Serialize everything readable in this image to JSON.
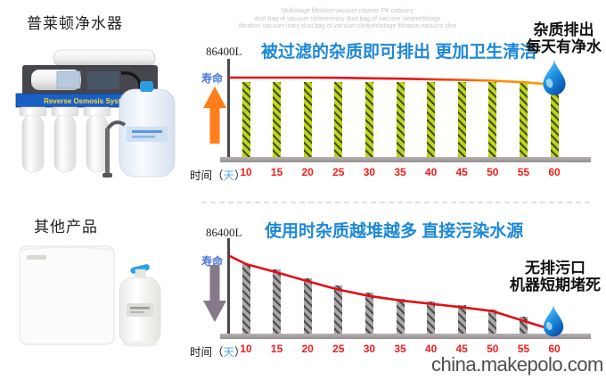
{
  "page": {
    "left_panel": {
      "product1_label": "普莱顿净水器",
      "product1_band_text": "Reverse Osmosis System",
      "product2_label": "其他产品"
    },
    "watermark": {
      "line1": "Multistage filtration vacuum cleaner PK ordinary",
      "line2": "dust bag of vacuum cleanerinary dust bag of vacuum cleanerlistage",
      "line3": "filtration vacuum inary dust bag of vacuum cleanerlistage filtration vacuum clea"
    },
    "footer_watermark": "china.makepolo.com"
  },
  "colors": {
    "title_blue": "#1e88d8",
    "tick_red": "#f21c1c",
    "day_blue": "#5aa6f0",
    "lifespan_blue": "#4a78d8",
    "bar_green": "#bcd421",
    "bar_green_stripe": "#44520a",
    "bar_gray": "#a8a8a8",
    "bar_gray_stripe": "#4c4c4c",
    "line_red": "#e30f16",
    "line_orange": "#ff9100",
    "arrow_orange": "#ff7d1a",
    "arrow_gray_purple": "#85798a",
    "axis_gray": "#4a4a48",
    "baseline_gray": "#a59f9f",
    "drop_blue_dark": "#0b57b0",
    "drop_blue_light": "#8edcf8"
  },
  "chart_data": [
    {
      "type": "bar",
      "title": "被过滤的杂质即可排出 更加卫生清洁",
      "y_axis_top_label": "86400L",
      "y_axis_label": "寿命",
      "x_prefix_time": "时间",
      "x_prefix_open": "（",
      "x_prefix_day": "天",
      "x_prefix_close": "）",
      "categories": [
        "10",
        "15",
        "20",
        "25",
        "30",
        "35",
        "40",
        "45",
        "50",
        "55",
        "60"
      ],
      "bar_values": [
        78,
        78,
        78,
        78,
        78,
        78,
        78,
        78,
        78,
        78,
        78
      ],
      "line_series": {
        "name": "寿命",
        "start": 82.7,
        "values": [
          82.7,
          82.7,
          82.7,
          82.5,
          82,
          81.6,
          81,
          80.4,
          79.5,
          78,
          75.5
        ]
      },
      "ylim": [
        0,
        100
      ],
      "annotation_line1": "杂质排出",
      "annotation_line2": "每天有净水",
      "legend": "none",
      "grid": false
    },
    {
      "type": "bar",
      "title": "使用时杂质越堆越多 直接污染水源",
      "y_axis_top_label": "86400L",
      "y_axis_label": "寿命",
      "x_prefix_time": "时间",
      "x_prefix_open": "（",
      "x_prefix_day": "天",
      "x_prefix_close": "）",
      "categories": [
        "10",
        "15",
        "20",
        "25",
        "30",
        "35",
        "40",
        "45",
        "50",
        "55",
        "60"
      ],
      "bar_values": [
        75,
        69,
        60,
        53,
        45.5,
        39,
        36.5,
        33,
        28,
        21,
        null
      ],
      "line_series": {
        "name": "寿命",
        "start": 83,
        "values": [
          74.5,
          66,
          57,
          48.5,
          42,
          37.5,
          34,
          30.5,
          26.5,
          16.5,
          7
        ]
      },
      "ylim": [
        0,
        100
      ],
      "annotation_line1": "无排污口",
      "annotation_line2": "机器短期堵死",
      "legend": "none",
      "grid": false
    }
  ]
}
